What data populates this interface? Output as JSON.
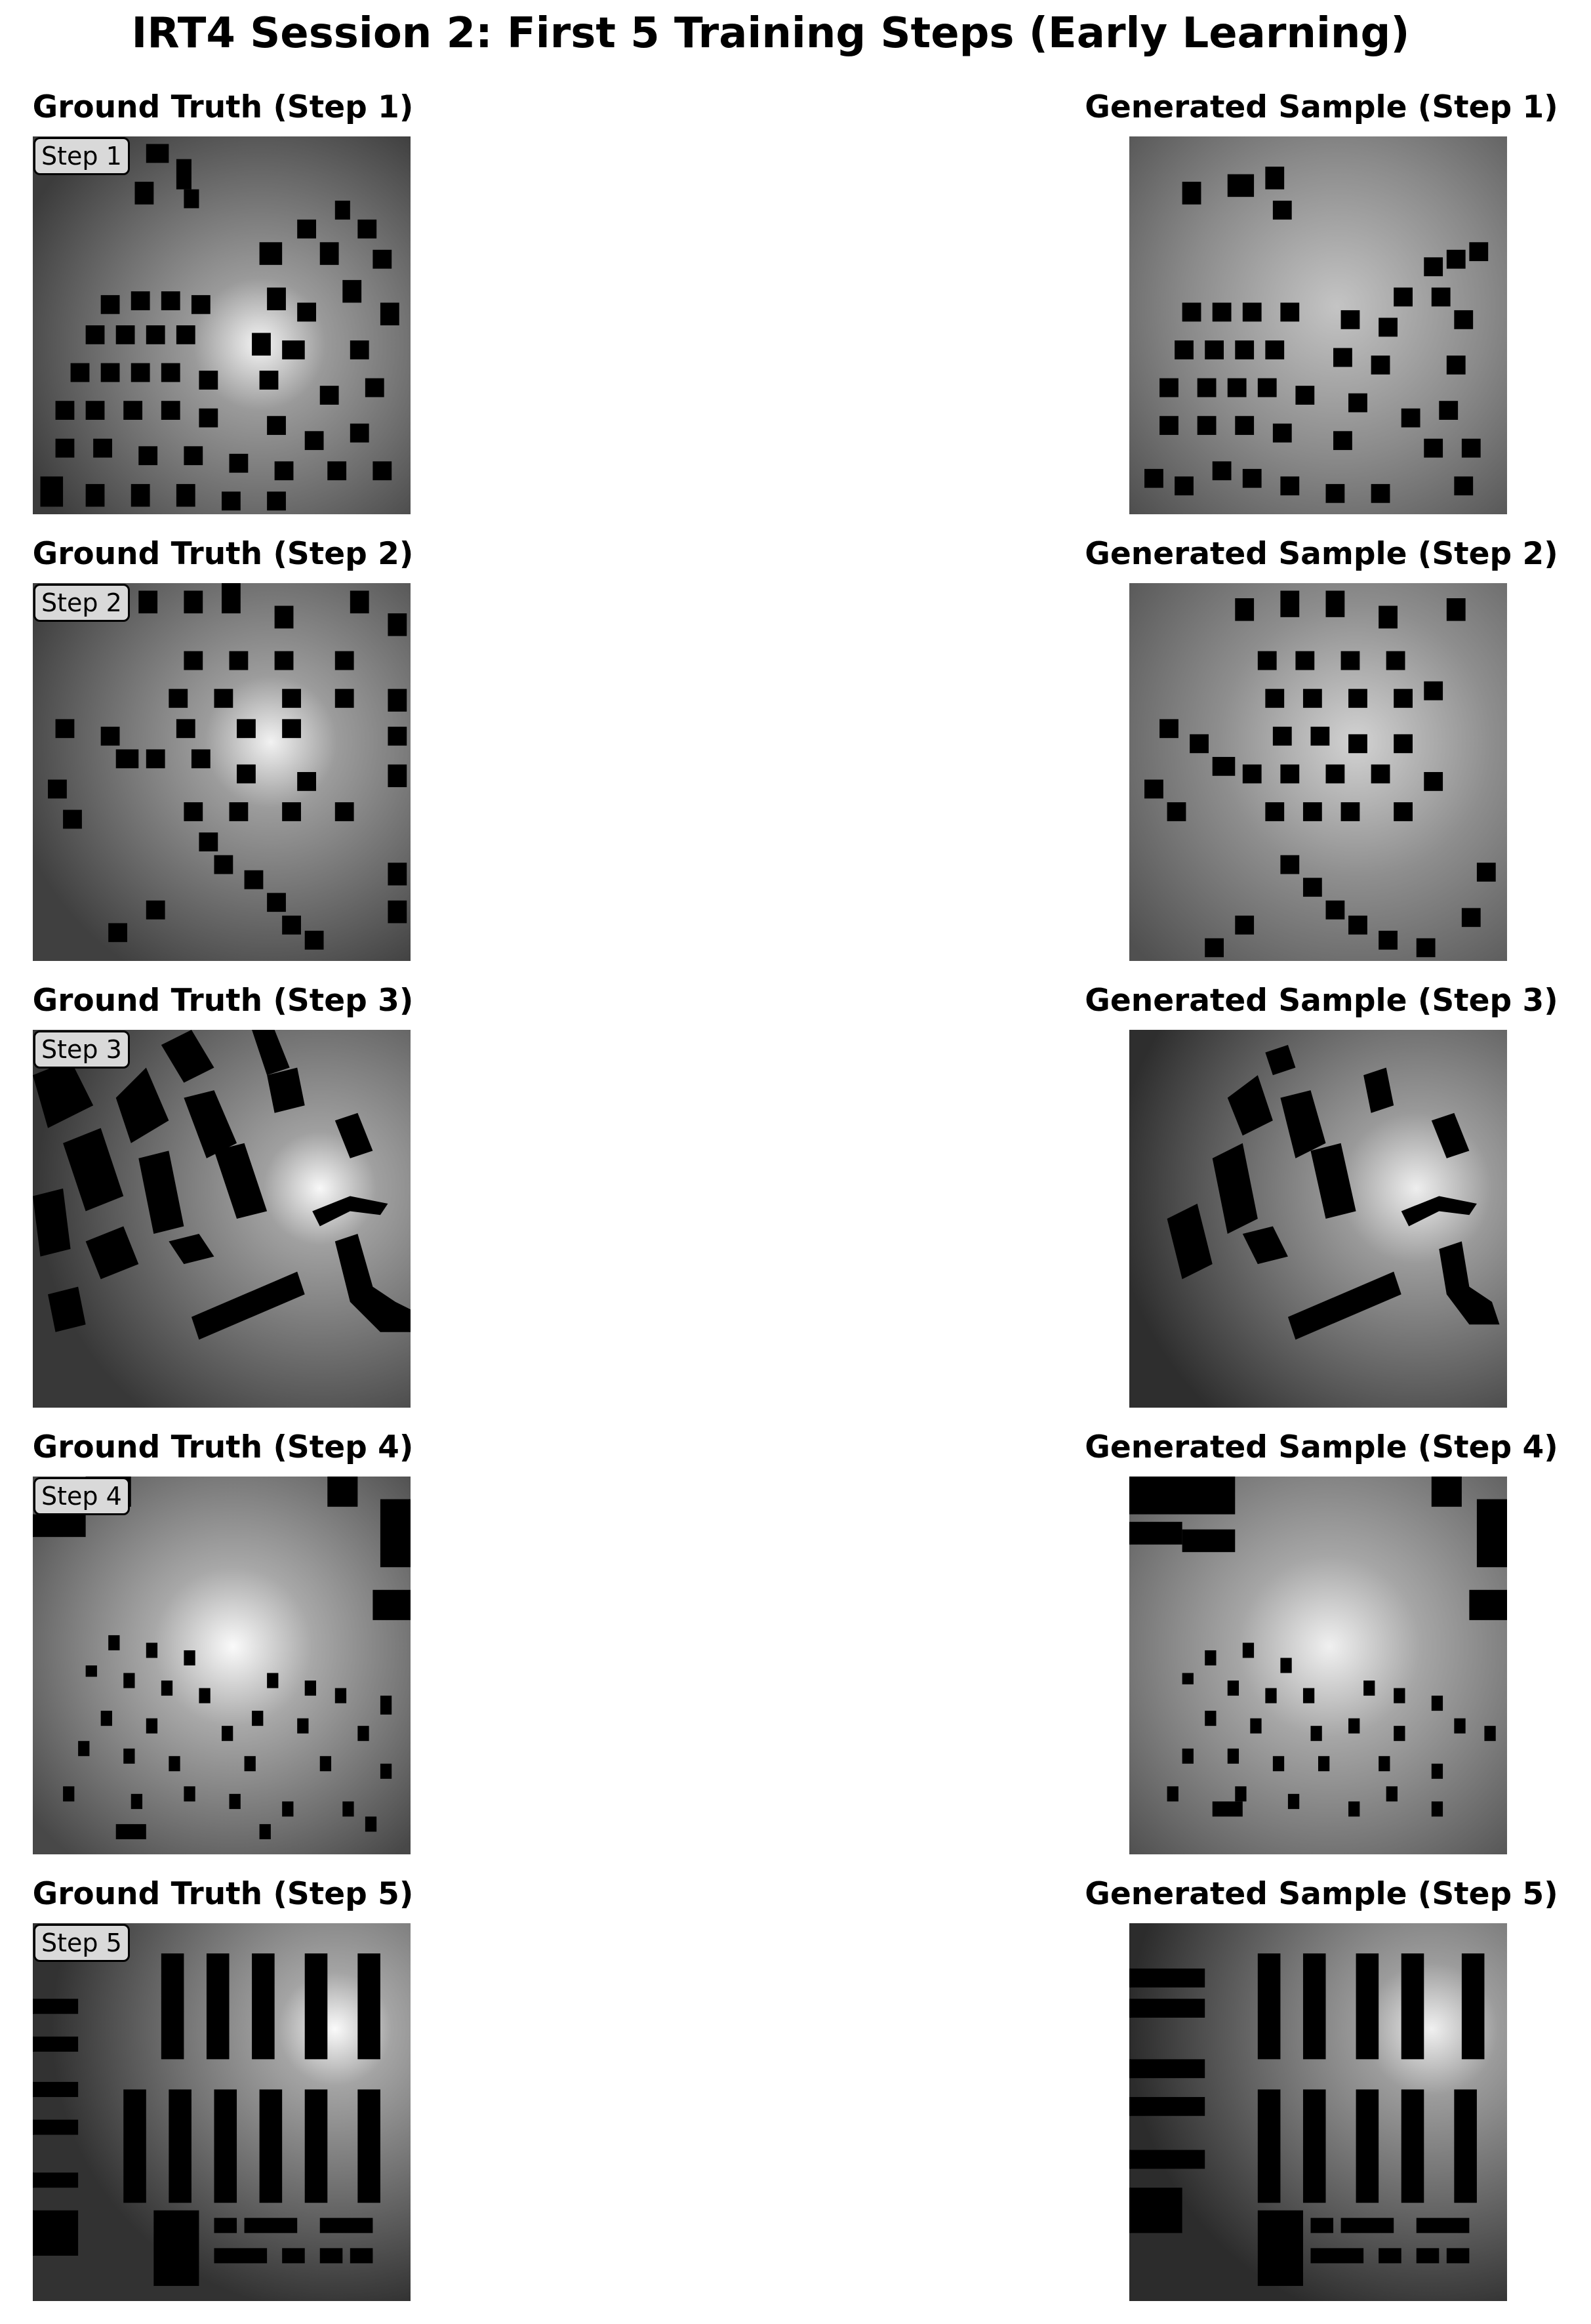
{
  "figure": {
    "title": "IRT4 Session 2: First 5 Training Steps (Early Learning)"
  },
  "rows": [
    {
      "gt_title": "Ground Truth (Step 1)",
      "gen_title": "Generated Sample (Step 1)",
      "badge": "Step 1"
    },
    {
      "gt_title": "Ground Truth (Step 2)",
      "gen_title": "Generated Sample (Step 2)",
      "badge": "Step 2"
    },
    {
      "gt_title": "Ground Truth (Step 3)",
      "gen_title": "Generated Sample (Step 3)",
      "badge": "Step 3"
    },
    {
      "gt_title": "Ground Truth (Step 4)",
      "gen_title": "Generated Sample (Step 4)",
      "badge": "Step 4"
    },
    {
      "gt_title": "Ground Truth (Step 5)",
      "gen_title": "Generated Sample (Step 5)",
      "badge": "Step 5"
    }
  ]
}
